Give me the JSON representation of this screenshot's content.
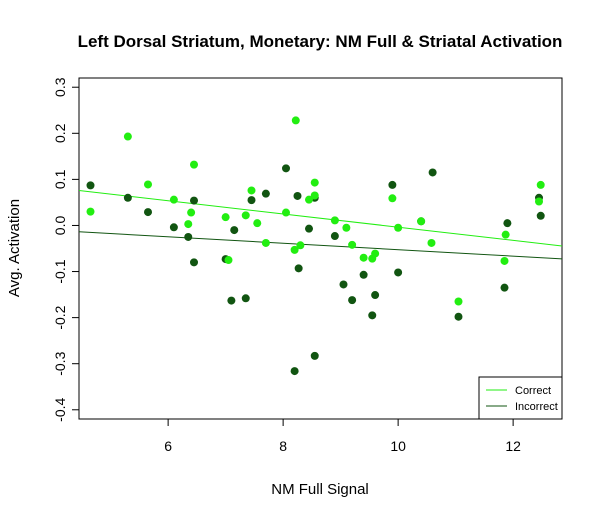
{
  "chart_data": {
    "type": "scatter",
    "title": "Left Dorsal Striatum, Monetary: NM Full & Striatal Activation",
    "xlabel": "NM Full Signal",
    "ylabel": "Avg. Activation",
    "xlim": [
      4.45,
      12.85
    ],
    "ylim": [
      -0.42,
      0.32
    ],
    "x_ticks": [
      6,
      8,
      10,
      12
    ],
    "y_ticks": [
      -0.4,
      -0.3,
      -0.2,
      -0.1,
      0.0,
      0.1,
      0.2,
      0.3
    ],
    "y_tick_labels": [
      "-0.4",
      "-0.3",
      "-0.2",
      "-0.1",
      "0.0",
      "0.1",
      "0.2",
      "0.3"
    ],
    "grid": false,
    "legend_position": "bottom-right",
    "series": [
      {
        "name": "Correct",
        "color": "#22ee11",
        "points": [
          [
            4.65,
            0.03
          ],
          [
            5.3,
            0.193
          ],
          [
            5.65,
            0.089
          ],
          [
            6.1,
            0.056
          ],
          [
            6.35,
            0.003
          ],
          [
            6.4,
            0.028
          ],
          [
            6.45,
            0.132
          ],
          [
            7.0,
            0.018
          ],
          [
            7.05,
            -0.075
          ],
          [
            7.35,
            0.022
          ],
          [
            7.45,
            0.076
          ],
          [
            7.55,
            0.005
          ],
          [
            7.7,
            -0.038
          ],
          [
            8.05,
            0.028
          ],
          [
            8.2,
            -0.053
          ],
          [
            8.22,
            0.228
          ],
          [
            8.3,
            -0.043
          ],
          [
            8.45,
            0.056
          ],
          [
            8.55,
            0.093
          ],
          [
            8.55,
            0.065
          ],
          [
            8.9,
            0.011
          ],
          [
            9.1,
            -0.005
          ],
          [
            9.2,
            -0.042
          ],
          [
            9.4,
            -0.07
          ],
          [
            9.55,
            -0.072
          ],
          [
            9.6,
            -0.061
          ],
          [
            9.9,
            0.059
          ],
          [
            10.0,
            -0.005
          ],
          [
            10.4,
            0.009
          ],
          [
            10.58,
            -0.038
          ],
          [
            11.05,
            -0.165
          ],
          [
            11.85,
            -0.077
          ],
          [
            11.87,
            -0.02
          ],
          [
            12.45,
            0.052
          ],
          [
            12.48,
            0.088
          ]
        ],
        "fit": {
          "intercept": 0.1398,
          "slope": -0.01435
        }
      },
      {
        "name": "Incorrect",
        "color": "#115511",
        "points": [
          [
            4.65,
            0.087
          ],
          [
            5.3,
            0.06
          ],
          [
            5.65,
            0.029
          ],
          [
            6.1,
            -0.004
          ],
          [
            6.35,
            -0.025
          ],
          [
            6.45,
            -0.08
          ],
          [
            6.45,
            0.054
          ],
          [
            7.0,
            -0.073
          ],
          [
            7.1,
            -0.163
          ],
          [
            7.15,
            -0.01
          ],
          [
            7.35,
            -0.158
          ],
          [
            7.45,
            0.055
          ],
          [
            7.7,
            0.069
          ],
          [
            8.05,
            0.124
          ],
          [
            8.2,
            -0.316
          ],
          [
            8.25,
            0.064
          ],
          [
            8.27,
            -0.093
          ],
          [
            8.45,
            -0.007
          ],
          [
            8.55,
            0.06
          ],
          [
            8.55,
            -0.283
          ],
          [
            8.9,
            -0.023
          ],
          [
            9.05,
            -0.128
          ],
          [
            9.2,
            -0.162
          ],
          [
            9.4,
            -0.107
          ],
          [
            9.55,
            -0.195
          ],
          [
            9.6,
            -0.151
          ],
          [
            9.9,
            0.088
          ],
          [
            10.0,
            -0.102
          ],
          [
            10.4,
            0.009
          ],
          [
            10.6,
            0.115
          ],
          [
            11.05,
            -0.198
          ],
          [
            11.85,
            -0.135
          ],
          [
            11.9,
            0.005
          ],
          [
            12.45,
            0.06
          ],
          [
            12.48,
            0.021
          ]
        ],
        "fit": {
          "intercept": 0.0174,
          "slope": -0.007
        }
      }
    ]
  }
}
